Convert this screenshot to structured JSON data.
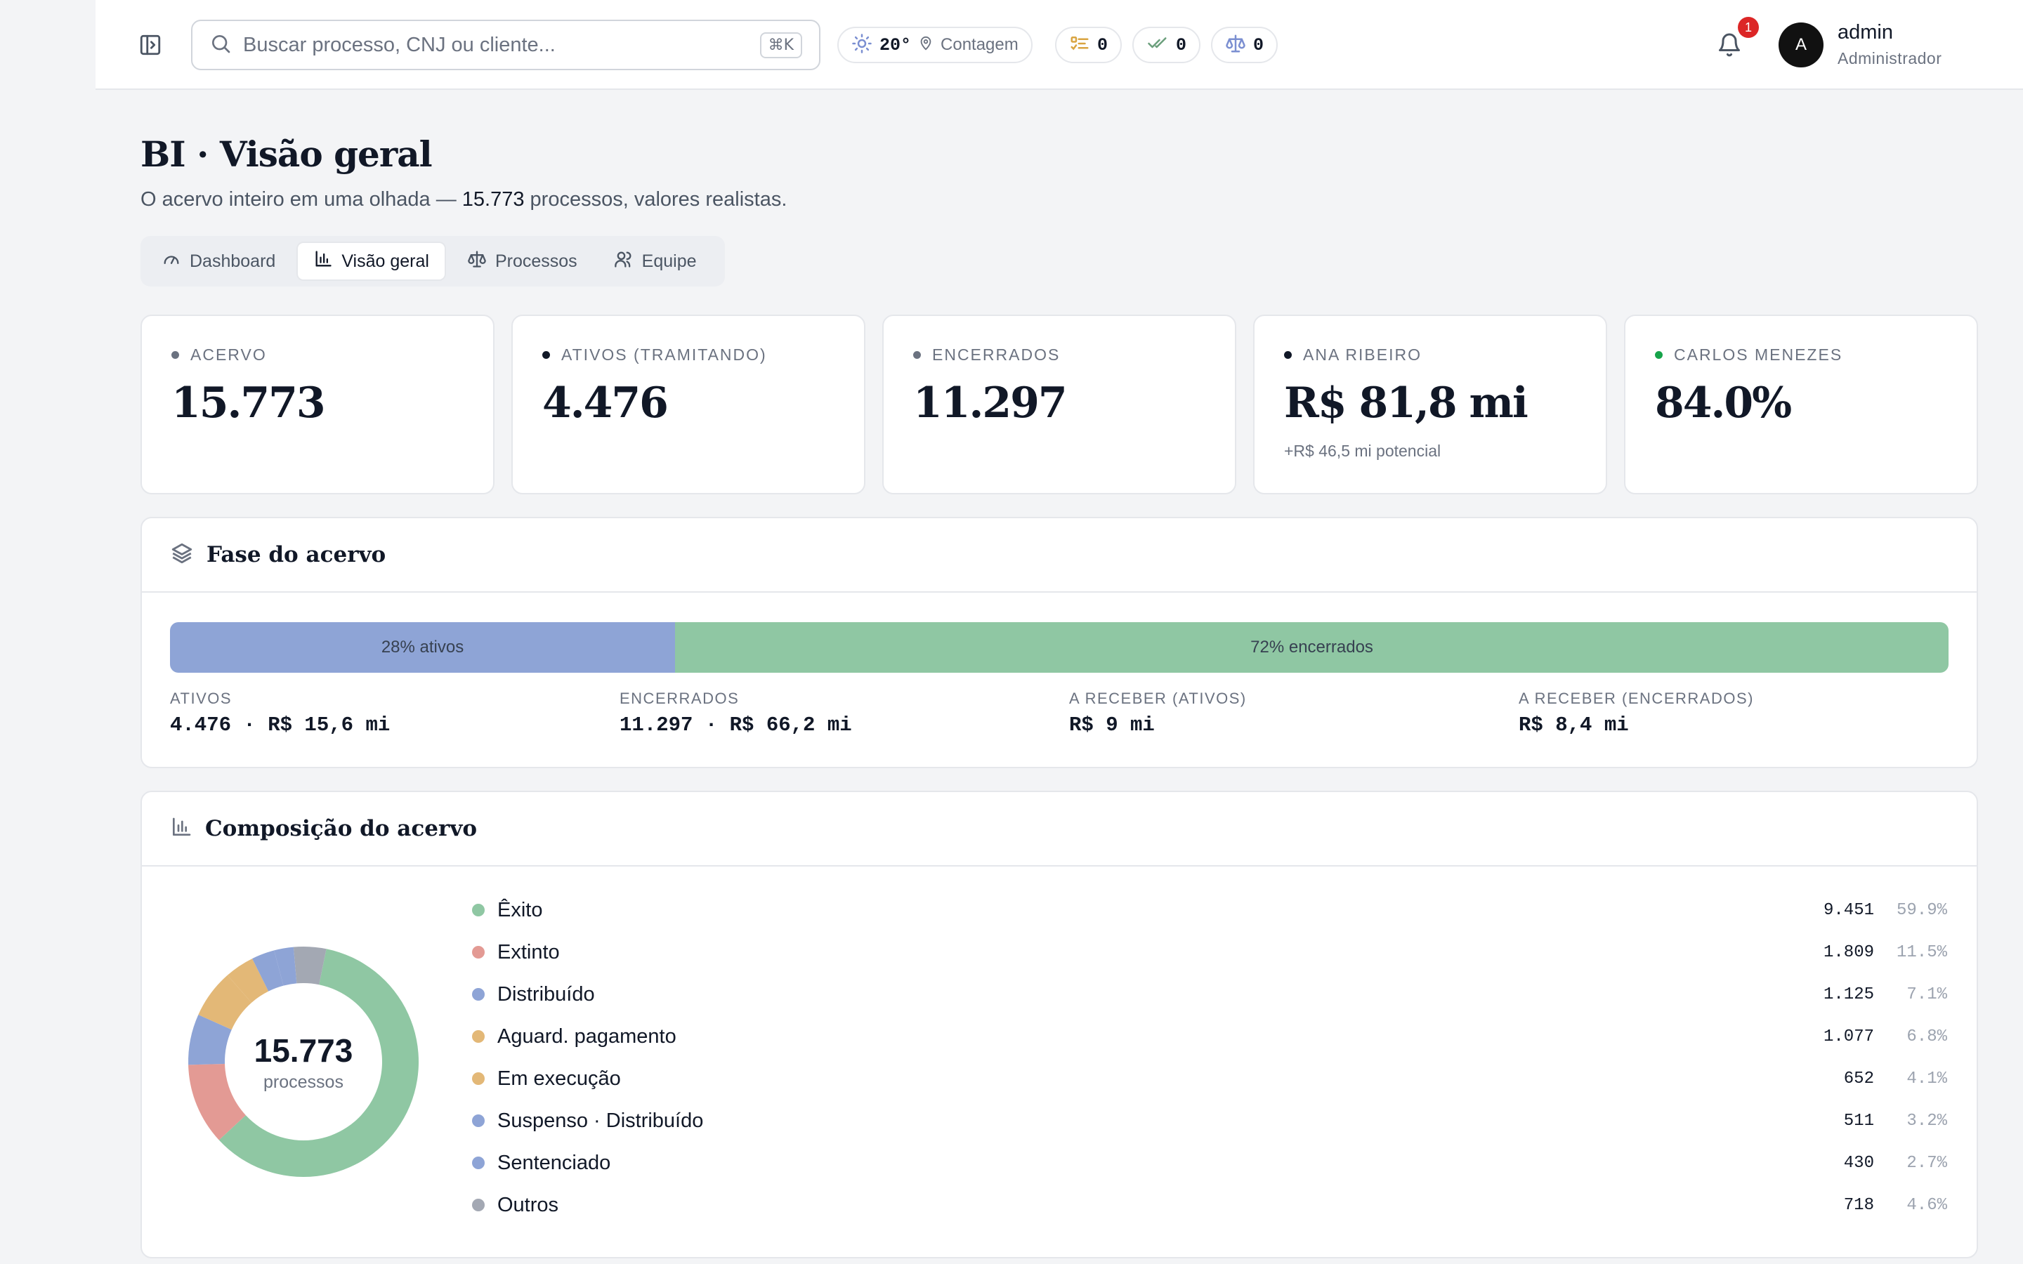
{
  "search": {
    "placeholder": "Buscar processo, CNJ ou cliente...",
    "shortcut": "⌘K"
  },
  "weather": {
    "temperature": "20°",
    "city": "Contagem"
  },
  "counters": [
    {
      "icon": "task-list-icon",
      "value": "0",
      "color": "#d9a441"
    },
    {
      "icon": "double-check-icon",
      "value": "0",
      "color": "#6b9f7c"
    },
    {
      "icon": "scale-icon",
      "value": "0",
      "color": "#7b8fd1"
    }
  ],
  "notifications": {
    "count": "1"
  },
  "user": {
    "initial": "A",
    "name": "admin",
    "role": "Administrador"
  },
  "page": {
    "title": "BI · Visão geral",
    "subtitle_before": "O acervo inteiro em uma olhada — ",
    "subtitle_count": "15.773",
    "subtitle_after": " processos, valores realistas."
  },
  "tabs": [
    {
      "label": "Dashboard",
      "icon": "gauge-icon",
      "active": false
    },
    {
      "label": "Visão geral",
      "icon": "bar-chart-icon",
      "active": true
    },
    {
      "label": "Processos",
      "icon": "scale-icon",
      "active": false
    },
    {
      "label": "Equipe",
      "icon": "users-icon",
      "active": false
    }
  ],
  "kpis": [
    {
      "label": "ACERVO",
      "value": "15.773",
      "note": "",
      "dot_color": "#6b7280"
    },
    {
      "label": "ATIVOS (TRAMITANDO)",
      "value": "4.476",
      "note": "",
      "dot_color": "#111827"
    },
    {
      "label": "ENCERRADOS",
      "value": "11.297",
      "note": "",
      "dot_color": "#6b7280"
    },
    {
      "label": "ANA RIBEIRO",
      "value": "R$ 81,8 mi",
      "note": "+R$ 46,5 mi potencial",
      "dot_color": "#111827"
    },
    {
      "label": "CARLOS MENEZES",
      "value": "84.0%",
      "note": "",
      "dot_color": "#16a34a"
    }
  ],
  "phase": {
    "title": "Fase do acervo",
    "segments": [
      {
        "label": "28% ativos",
        "share": 28.4,
        "color": "#8ea4d6"
      },
      {
        "label": "72% encerrados",
        "share": 71.6,
        "color": "#8fc7a3"
      }
    ],
    "stats": [
      {
        "label": "ATIVOS",
        "value": "4.476 · R$ 15,6 mi"
      },
      {
        "label": "ENCERRADOS",
        "value": "11.297 · R$ 66,2 mi"
      },
      {
        "label": "A RECEBER (ATIVOS)",
        "value": "R$ 9 mi"
      },
      {
        "label": "A RECEBER (ENCERRADOS)",
        "value": "R$ 8,4 mi"
      }
    ]
  },
  "composition": {
    "title": "Composição do acervo",
    "total": "15.773",
    "total_label": "processos"
  },
  "chart_data": {
    "type": "pie",
    "categories": [
      "Êxito",
      "Extinto",
      "Distribuído",
      "Aguard. pagamento",
      "Em execução",
      "Suspenso · Distribuído",
      "Sentenciado",
      "Outros"
    ],
    "values": [
      9451,
      1809,
      1125,
      1077,
      652,
      511,
      430,
      718
    ],
    "value_labels": [
      "9.451",
      "1.809",
      "1.125",
      "1.077",
      "652",
      "511",
      "430",
      "718"
    ],
    "percent_labels": [
      "59.9%",
      "11.5%",
      "7.1%",
      "6.8%",
      "4.1%",
      "3.2%",
      "2.7%",
      "4.6%"
    ],
    "colors": [
      "#8fc7a3",
      "#e39a94",
      "#8ea4d6",
      "#e3b877",
      "#e3b877",
      "#8ea4d6",
      "#8ea4d6",
      "#a3a8b3"
    ]
  }
}
